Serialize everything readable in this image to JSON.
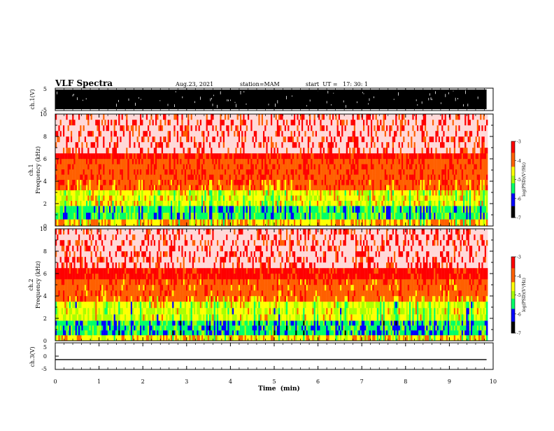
{
  "header": {
    "title": "VLF Spectra",
    "date": "Aug.23, 2021",
    "station": "station=MAM",
    "start": "start  UT =   17: 30: 1"
  },
  "colors": {
    "spectrum_high": "#ff0000",
    "spectrum_mid": "#ffff00",
    "spectrum_low_mid": "#00ff66",
    "spectrum_low": "#0000ff",
    "spectrum_floor": "#000000",
    "background": "#ffffff"
  },
  "chart_data": [
    {
      "type": "line",
      "name": "ch1-waveform",
      "ylabel": "ch.1(V)",
      "xlim": [
        0,
        10
      ],
      "ylim": [
        -5,
        5
      ],
      "yticks": [
        "5",
        "-5"
      ],
      "data_end_min": 9.85,
      "description_values": {
        "envelope": [
          -5,
          5
        ]
      }
    },
    {
      "type": "heatmap",
      "name": "ch1-spectrogram",
      "ylabel": "ch.1\nFrequency  (kHz)",
      "xlim": [
        0,
        10
      ],
      "ylim": [
        0,
        10
      ],
      "yticks": [
        "0",
        "2",
        "4",
        "6",
        "8",
        "10"
      ],
      "data_end_min": 9.85,
      "bands_khz": [
        {
          "from": 0,
          "to": 0.6,
          "level": -4.3
        },
        {
          "from": 0.6,
          "to": 1.8,
          "level": -5.3
        },
        {
          "from": 1.8,
          "to": 3.2,
          "level": -4.6
        },
        {
          "from": 3.2,
          "to": 6.0,
          "level": -3.8
        },
        {
          "from": 6.0,
          "to": 10,
          "level": -3.3
        }
      ],
      "colorbar": {
        "label": "log(PSD)(V²/Hz)",
        "range": [
          -7,
          -3
        ],
        "ticks": [
          "-3",
          "-4",
          "-5",
          "-6",
          "-7"
        ]
      }
    },
    {
      "type": "heatmap",
      "name": "ch2-spectrogram",
      "ylabel": "ch.2\nFrequency  (kHz)",
      "xlim": [
        0,
        10
      ],
      "ylim": [
        0,
        10
      ],
      "yticks": [
        "0",
        "2",
        "4",
        "6",
        "8",
        "10"
      ],
      "data_end_min": 9.85,
      "bands_khz": [
        {
          "from": 0,
          "to": 0.5,
          "level": -4.4
        },
        {
          "from": 0.5,
          "to": 1.8,
          "level": -5.4
        },
        {
          "from": 1.8,
          "to": 3.5,
          "level": -4.7
        },
        {
          "from": 3.5,
          "to": 5.5,
          "level": -3.9
        },
        {
          "from": 5.5,
          "to": 10,
          "level": -3.3
        }
      ],
      "colorbar": {
        "label": "log(PSD)(V²/Hz)",
        "range": [
          -7,
          -3
        ],
        "ticks": [
          "-3",
          "-4",
          "-5",
          "-6",
          "-7"
        ]
      }
    },
    {
      "type": "line",
      "name": "ch3-waveform",
      "ylabel": "ch.3(V)",
      "xlim": [
        0,
        10
      ],
      "ylim": [
        -5,
        5
      ],
      "yticks": [
        "5",
        "0",
        "-5"
      ],
      "data_end_min": 9.85,
      "level_v": -1.3
    }
  ],
  "xaxis": {
    "label": "Time  (min)",
    "ticks": [
      "0",
      "1",
      "2",
      "3",
      "4",
      "5",
      "6",
      "7",
      "8",
      "9",
      "10"
    ]
  }
}
